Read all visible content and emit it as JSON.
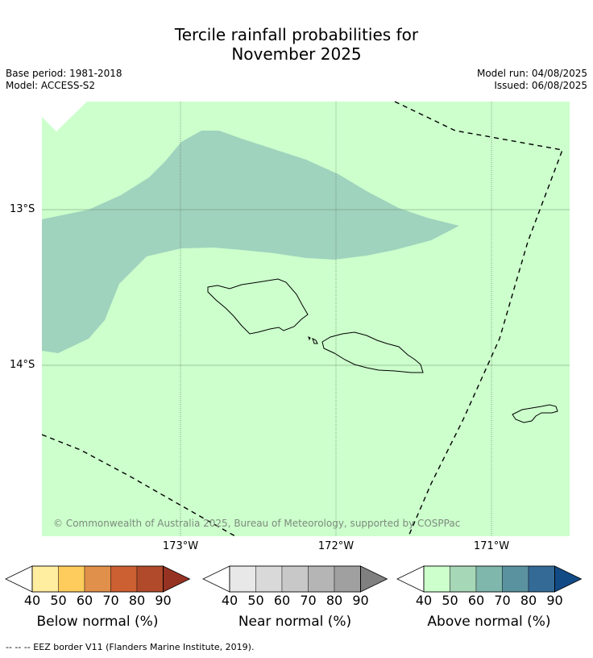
{
  "title_line1": "Tercile rainfall probabilities for",
  "title_line2": "November 2025",
  "base_period": "Base period: 1981-2018",
  "model": "Model: ACCESS-S2",
  "model_run": "Model run: 04/08/2025",
  "issued": "Issued: 06/08/2025",
  "map": {
    "background_color": "#ccffcc",
    "shaded_region_color": "#9fd3bd",
    "latitude_labels": [
      "13°S",
      "14°S"
    ],
    "longitude_labels": [
      "173°W",
      "172°W",
      "171°W"
    ],
    "islands": [
      "Savai'i",
      "Upolu",
      "Tutuila"
    ],
    "copyright": "© Commonwealth of Australia 2025, Bureau of Meteorology, supported by COSPPac"
  },
  "legends": [
    {
      "title": "Below normal (%)",
      "ticks": [
        "40",
        "50",
        "60",
        "70",
        "80",
        "90"
      ],
      "colors": [
        "#ffeda0",
        "#fecc5c",
        "#e0904a",
        "#cc6033",
        "#b04a2a",
        "#963222"
      ]
    },
    {
      "title": "Near normal (%)",
      "ticks": [
        "40",
        "50",
        "60",
        "70",
        "80",
        "90"
      ],
      "colors": [
        "#e8e8e8",
        "#d9d9d9",
        "#c8c8c8",
        "#b5b5b5",
        "#a0a0a0",
        "#808080"
      ]
    },
    {
      "title": "Above normal (%)",
      "ticks": [
        "40",
        "50",
        "60",
        "70",
        "80",
        "90"
      ],
      "colors": [
        "#ccffcc",
        "#a6d7b7",
        "#80b7ac",
        "#5a92a0",
        "#346a96",
        "#124a86"
      ]
    }
  ],
  "footnote": "--  --  -- EEZ border V11 (Flanders Marine Institute, 2019)."
}
